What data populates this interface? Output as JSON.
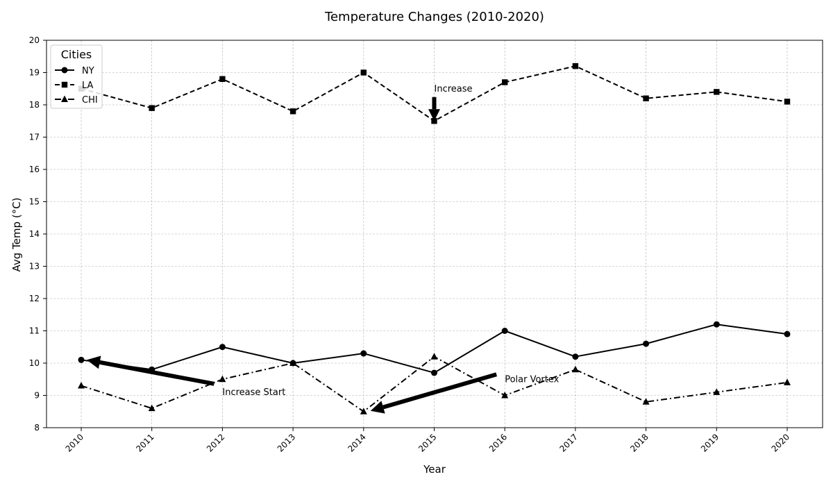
{
  "chart_data": {
    "type": "line",
    "title": "Temperature Changes (2010-2020)",
    "xlabel": "Year",
    "ylabel": "Avg Temp (°C)",
    "x": [
      "2010",
      "2011",
      "2012",
      "2013",
      "2014",
      "2015",
      "2016",
      "2017",
      "2018",
      "2019",
      "2020"
    ],
    "ylim": [
      8,
      20
    ],
    "yticks": [
      "8",
      "9",
      "10",
      "11",
      "12",
      "13",
      "14",
      "15",
      "16",
      "17",
      "18",
      "19",
      "20"
    ],
    "grid": true,
    "legend": {
      "title": "Cities",
      "placement": "top-left"
    },
    "series": [
      {
        "name": "NY",
        "values": [
          10.1,
          9.8,
          10.5,
          10.0,
          10.3,
          9.7,
          11.0,
          10.2,
          10.6,
          11.2,
          10.9
        ],
        "marker": "circle",
        "linestyle": "solid",
        "color": "#000000"
      },
      {
        "name": "LA",
        "values": [
          18.5,
          17.9,
          18.8,
          17.8,
          19.0,
          17.5,
          18.7,
          19.2,
          18.2,
          18.4,
          18.1
        ],
        "marker": "square",
        "linestyle": "dashed",
        "color": "#000000"
      },
      {
        "name": "CHI",
        "values": [
          9.3,
          8.6,
          9.5,
          10.0,
          8.5,
          10.2,
          9.0,
          9.8,
          8.8,
          9.1,
          9.4
        ],
        "marker": "triangle",
        "linestyle": "dashdot",
        "color": "#000000"
      }
    ],
    "annotations": [
      {
        "text": "Increase",
        "point_x": "2015",
        "point_y": 17.5,
        "text_x": "2015",
        "text_y": 18.5
      },
      {
        "text": "Increase Start",
        "point_x": "2010",
        "point_y": 10.1,
        "text_x": "2012",
        "text_y": 9.1
      },
      {
        "text": "Polar Vortex",
        "point_x": "2014",
        "point_y": 8.5,
        "text_x": "2016",
        "text_y": 9.5
      }
    ]
  }
}
